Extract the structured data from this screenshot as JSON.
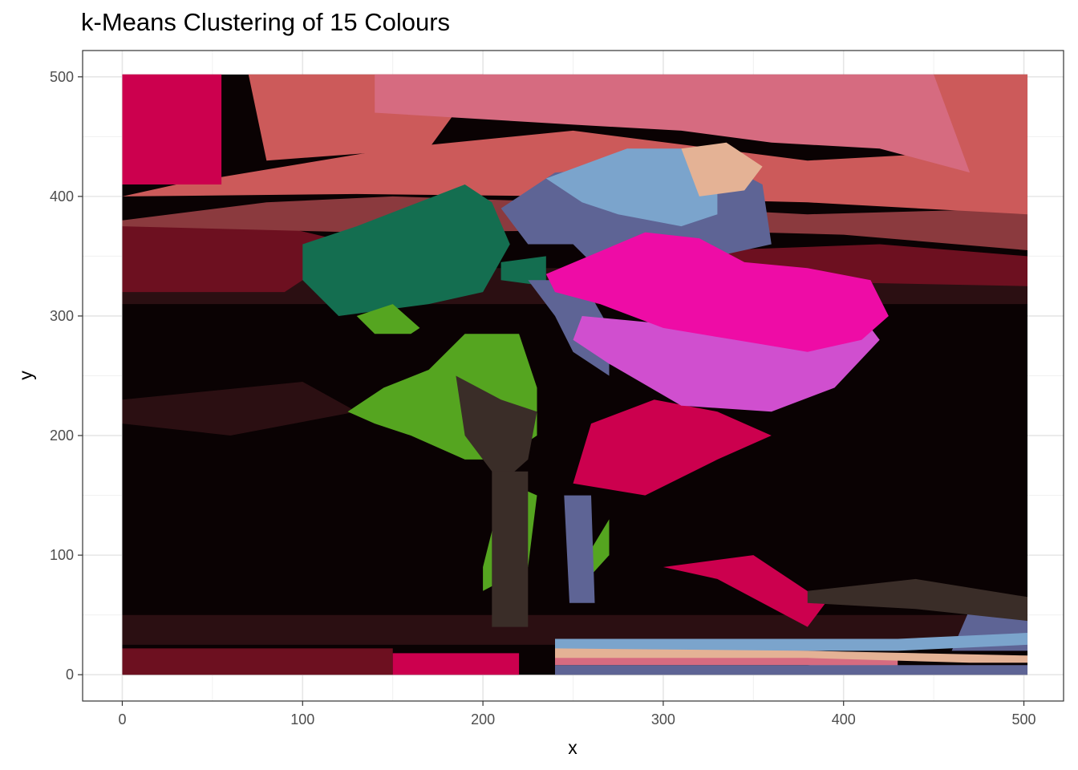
{
  "chart_data": {
    "type": "scatter",
    "title": "k-Means Clustering of 15 Colours",
    "xlabel": "x",
    "ylabel": "y",
    "xlim": [
      -22,
      522
    ],
    "ylim": [
      -22,
      522
    ],
    "x_ticks": [
      0,
      100,
      200,
      300,
      400,
      500
    ],
    "y_ticks": [
      0,
      100,
      200,
      300,
      400,
      500
    ],
    "x_tick_labels": [
      "0",
      "100",
      "200",
      "300",
      "400",
      "500"
    ],
    "y_tick_labels": [
      "0",
      "100",
      "200",
      "300",
      "400",
      "500"
    ],
    "grid": true,
    "legend": "none",
    "image_extent": {
      "x": [
        0,
        502
      ],
      "y": [
        0,
        502
      ]
    },
    "clusters": [
      {
        "color": "#0a0203",
        "regions": [
          [
            [
              0,
              280
            ],
            [
              120,
              300
            ],
            [
              200,
              320
            ],
            [
              230,
              310
            ],
            [
              215,
              200
            ],
            [
              260,
              130
            ],
            [
              290,
              230
            ],
            [
              340,
              290
            ],
            [
              430,
              280
            ],
            [
              500,
              330
            ],
            [
              502,
              330
            ],
            [
              502,
              40
            ],
            [
              0,
              40
            ]
          ]
        ]
      },
      {
        "color": "#2b0f12",
        "regions": [
          [
            [
              0,
              310
            ],
            [
              502,
              310
            ],
            [
              502,
              340
            ],
            [
              0,
              340
            ]
          ],
          [
            [
              0,
              25
            ],
            [
              502,
              25
            ],
            [
              502,
              50
            ],
            [
              0,
              50
            ]
          ],
          [
            [
              0,
              230
            ],
            [
              100,
              245
            ],
            [
              130,
              220
            ],
            [
              60,
              200
            ],
            [
              0,
              210
            ]
          ]
        ]
      },
      {
        "color": "#6d1020",
        "regions": [
          [
            [
              0,
              320
            ],
            [
              90,
              320
            ],
            [
              130,
              360
            ],
            [
              60,
              385
            ],
            [
              0,
              380
            ]
          ],
          [
            [
              330,
              355
            ],
            [
              420,
              360
            ],
            [
              502,
              350
            ],
            [
              502,
              325
            ],
            [
              330,
              330
            ]
          ],
          [
            [
              0,
              0
            ],
            [
              150,
              0
            ],
            [
              150,
              22
            ],
            [
              0,
              22
            ]
          ]
        ]
      },
      {
        "color": "#8b3a3e",
        "regions": [
          [
            [
              0,
              380
            ],
            [
              80,
              395
            ],
            [
              150,
              400
            ],
            [
              250,
              395
            ],
            [
              380,
              385
            ],
            [
              502,
              390
            ],
            [
              502,
              355
            ],
            [
              400,
              368
            ],
            [
              300,
              372
            ],
            [
              130,
              370
            ],
            [
              0,
              375
            ]
          ]
        ]
      },
      {
        "color": "#cc5a5a",
        "regions": [
          [
            [
              30,
              410
            ],
            [
              150,
              440
            ],
            [
              250,
              455
            ],
            [
              380,
              430
            ],
            [
              502,
              440
            ],
            [
              502,
              385
            ],
            [
              380,
              395
            ],
            [
              250,
              400
            ],
            [
              130,
              402
            ],
            [
              0,
              400
            ]
          ],
          [
            [
              450,
              502
            ],
            [
              502,
              502
            ],
            [
              502,
              420
            ],
            [
              440,
              440
            ]
          ],
          [
            [
              70,
              502
            ],
            [
              200,
              502
            ],
            [
              170,
              440
            ],
            [
              80,
              430
            ]
          ]
        ]
      },
      {
        "color": "#d66b80",
        "regions": [
          [
            [
              140,
              502
            ],
            [
              450,
              502
            ],
            [
              470,
              420
            ],
            [
              420,
              440
            ],
            [
              360,
              445
            ],
            [
              310,
              455
            ],
            [
              250,
              460
            ],
            [
              140,
              470
            ]
          ],
          [
            [
              240,
              8
            ],
            [
              380,
              8
            ],
            [
              430,
              3
            ],
            [
              430,
              18
            ],
            [
              330,
              22
            ],
            [
              240,
              22
            ]
          ]
        ]
      },
      {
        "color": "#cc004e",
        "regions": [
          [
            [
              0,
              502
            ],
            [
              55,
              502
            ],
            [
              55,
              410
            ],
            [
              0,
              410
            ]
          ],
          [
            [
              150,
              0
            ],
            [
              220,
              0
            ],
            [
              220,
              18
            ],
            [
              150,
              18
            ]
          ],
          [
            [
              250,
              160
            ],
            [
              290,
              150
            ],
            [
              330,
              180
            ],
            [
              360,
              200
            ],
            [
              330,
              220
            ],
            [
              295,
              230
            ],
            [
              260,
              210
            ]
          ],
          [
            [
              300,
              90
            ],
            [
              330,
              80
            ],
            [
              380,
              40
            ],
            [
              390,
              60
            ],
            [
              350,
              100
            ]
          ]
        ]
      },
      {
        "color": "#146e50",
        "regions": [
          [
            [
              100,
              360
            ],
            [
              130,
              375
            ],
            [
              190,
              410
            ],
            [
              205,
              395
            ],
            [
              215,
              360
            ],
            [
              200,
              320
            ],
            [
              170,
              310
            ],
            [
              120,
              300
            ],
            [
              100,
              330
            ]
          ],
          [
            [
              210,
              345
            ],
            [
              235,
              350
            ],
            [
              235,
              325
            ],
            [
              210,
              330
            ]
          ]
        ]
      },
      {
        "color": "#55a520",
        "regions": [
          [
            [
              130,
              300
            ],
            [
              150,
              310
            ],
            [
              165,
              290
            ],
            [
              160,
              285
            ],
            [
              140,
              285
            ]
          ],
          [
            [
              125,
              220
            ],
            [
              145,
              240
            ],
            [
              170,
              255
            ],
            [
              190,
              285
            ],
            [
              220,
              285
            ],
            [
              230,
              240
            ],
            [
              230,
              200
            ],
            [
              210,
              180
            ],
            [
              190,
              180
            ],
            [
              160,
              200
            ],
            [
              140,
              210
            ]
          ],
          [
            [
              200,
              70
            ],
            [
              225,
              90
            ],
            [
              230,
              150
            ],
            [
              215,
              160
            ],
            [
              205,
              120
            ],
            [
              200,
              90
            ]
          ],
          [
            [
              255,
              75
            ],
            [
              270,
              100
            ],
            [
              270,
              130
            ],
            [
              258,
              100
            ]
          ]
        ]
      },
      {
        "color": "#5e6495",
        "regions": [
          [
            [
              210,
              390
            ],
            [
              240,
              420
            ],
            [
              330,
              430
            ],
            [
              355,
              410
            ],
            [
              360,
              360
            ],
            [
              330,
              350
            ],
            [
              300,
              330
            ],
            [
              270,
              330
            ],
            [
              250,
              360
            ],
            [
              225,
              360
            ]
          ],
          [
            [
              225,
              330
            ],
            [
              240,
              300
            ],
            [
              250,
              270
            ],
            [
              270,
              250
            ],
            [
              270,
              290
            ],
            [
              255,
              330
            ]
          ],
          [
            [
              460,
              20
            ],
            [
              502,
              20
            ],
            [
              502,
              60
            ],
            [
              470,
              55
            ]
          ],
          [
            [
              240,
              0
            ],
            [
              502,
              0
            ],
            [
              502,
              8
            ],
            [
              240,
              8
            ]
          ],
          [
            [
              245,
              150
            ],
            [
              260,
              150
            ],
            [
              262,
              60
            ],
            [
              248,
              60
            ]
          ]
        ]
      },
      {
        "color": "#7ba4cc",
        "regions": [
          [
            [
              235,
              415
            ],
            [
              280,
              440
            ],
            [
              320,
              440
            ],
            [
              330,
              420
            ],
            [
              330,
              385
            ],
            [
              310,
              375
            ],
            [
              275,
              385
            ],
            [
              255,
              395
            ]
          ],
          [
            [
              240,
              20
            ],
            [
              430,
              20
            ],
            [
              502,
              25
            ],
            [
              502,
              35
            ],
            [
              430,
              30
            ],
            [
              240,
              30
            ]
          ],
          [
            [
              280,
              335
            ],
            [
              300,
              335
            ],
            [
              300,
              320
            ],
            [
              280,
              320
            ]
          ]
        ]
      },
      {
        "color": "#e4b295",
        "regions": [
          [
            [
              310,
              440
            ],
            [
              335,
              445
            ],
            [
              355,
              425
            ],
            [
              345,
              405
            ],
            [
              320,
              400
            ]
          ],
          [
            [
              240,
              14
            ],
            [
              380,
              14
            ],
            [
              470,
              10
            ],
            [
              502,
              10
            ],
            [
              502,
              16
            ],
            [
              380,
              20
            ],
            [
              240,
              22
            ]
          ]
        ]
      },
      {
        "color": "#d04fcf",
        "regions": [
          [
            [
              250,
              280
            ],
            [
              270,
              260
            ],
            [
              310,
              225
            ],
            [
              360,
              220
            ],
            [
              395,
              240
            ],
            [
              420,
              280
            ],
            [
              410,
              300
            ],
            [
              380,
              300
            ],
            [
              330,
              290
            ],
            [
              290,
              295
            ],
            [
              255,
              300
            ]
          ]
        ]
      },
      {
        "color": "#ee0ca6",
        "regions": [
          [
            [
              235,
              335
            ],
            [
              290,
              370
            ],
            [
              320,
              365
            ],
            [
              345,
              345
            ],
            [
              380,
              340
            ],
            [
              415,
              330
            ],
            [
              425,
              300
            ],
            [
              410,
              280
            ],
            [
              380,
              270
            ],
            [
              340,
              280
            ],
            [
              300,
              290
            ],
            [
              265,
              310
            ],
            [
              240,
              320
            ]
          ]
        ]
      },
      {
        "color": "#3a2d28",
        "regions": [
          [
            [
              185,
              250
            ],
            [
              210,
              230
            ],
            [
              230,
              220
            ],
            [
              225,
              180
            ],
            [
              210,
              160
            ],
            [
              190,
              200
            ]
          ],
          [
            [
              380,
              70
            ],
            [
              440,
              80
            ],
            [
              502,
              65
            ],
            [
              502,
              45
            ],
            [
              440,
              55
            ],
            [
              380,
              60
            ]
          ],
          [
            [
              205,
              170
            ],
            [
              225,
              170
            ],
            [
              225,
              40
            ],
            [
              205,
              40
            ]
          ]
        ]
      }
    ]
  }
}
